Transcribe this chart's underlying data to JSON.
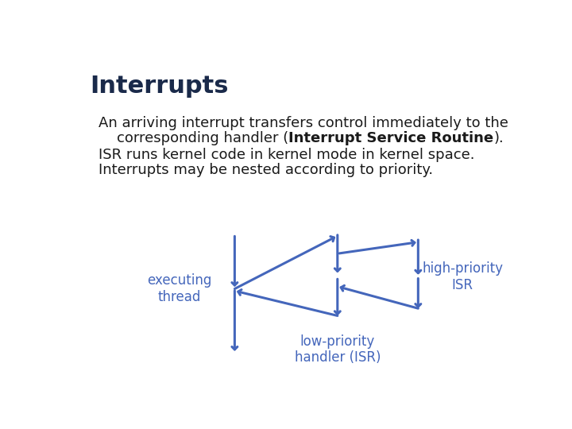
{
  "title": "Interrupts",
  "title_color": "#1a2a4a",
  "title_fontsize": 22,
  "bg_color": "#ffffff",
  "arrow_color": "#4466bb",
  "text_color": "#4466bb",
  "body_text_color": "#1a1a1a",
  "line1": "An arriving interrupt transfers control immediately to the",
  "line2_pre": "    corresponding handler (",
  "line2_bold": "Interrupt Service Routine",
  "line2_post": ").",
  "line3": "ISR runs kernel code in kernel mode in kernel space.",
  "line4": "Interrupts may be nested according to priority.",
  "label_executing": "executing\nthread",
  "label_low": "low-priority\nhandler (ISR)",
  "label_high": "high-priority\nISR",
  "fontsize_body": 13,
  "fontsize_label": 12,
  "arrow_lw": 2.2
}
